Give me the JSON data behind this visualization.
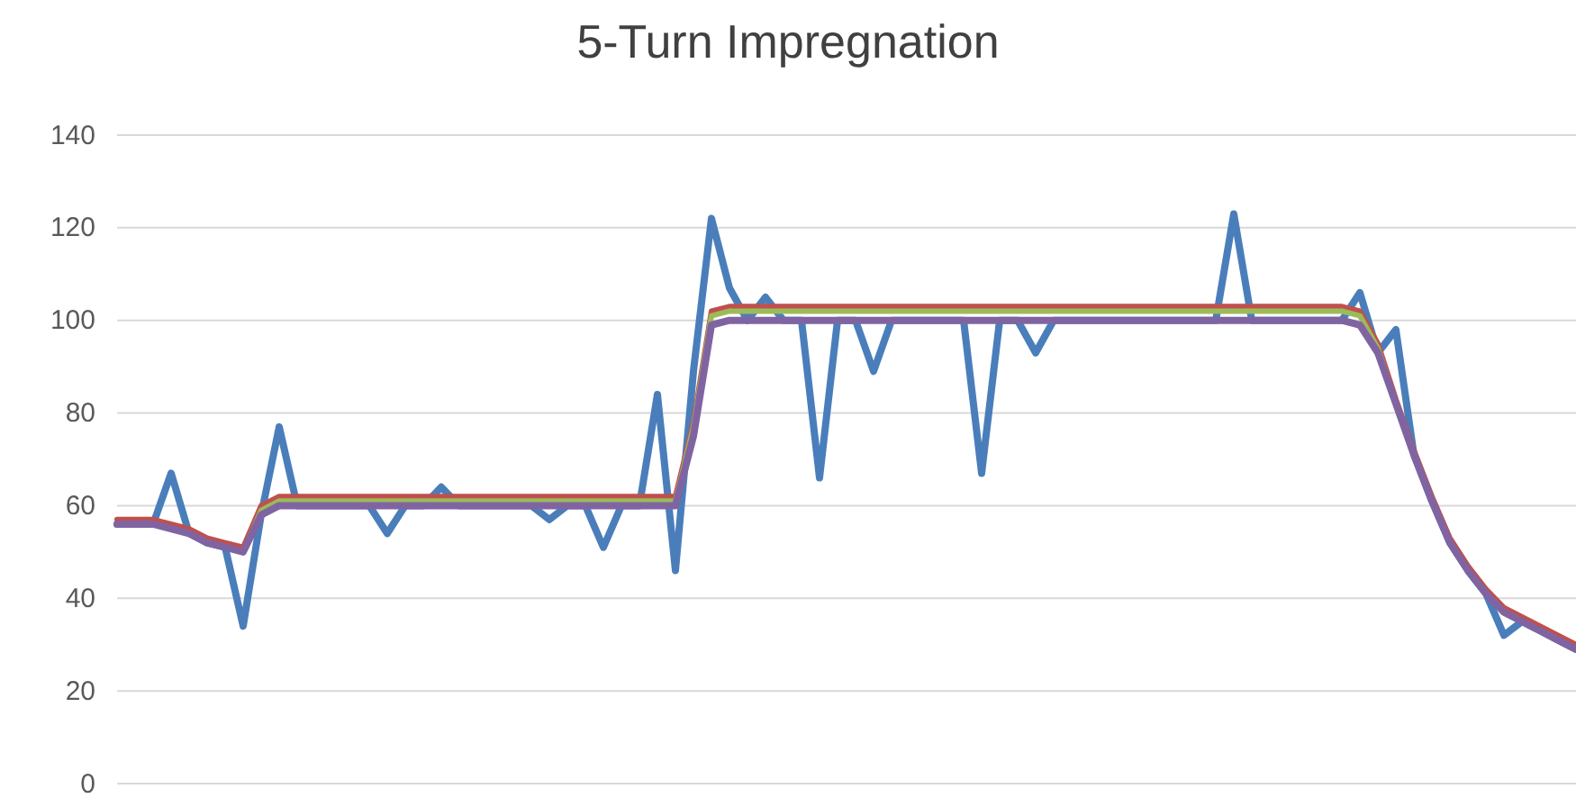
{
  "chart_data": {
    "type": "line",
    "title": "5-Turn Impregnation",
    "categories": [
      null,
      null,
      null,
      null,
      null,
      null,
      null,
      null,
      null,
      null,
      null,
      null,
      null,
      null,
      null,
      null,
      null,
      null,
      null,
      null,
      null,
      null,
      null,
      null,
      null,
      null,
      null,
      null,
      null,
      null,
      null,
      null,
      null,
      null,
      null,
      null,
      null,
      null,
      null,
      null,
      null,
      null,
      null,
      null,
      null,
      null,
      null,
      null,
      null,
      null,
      null,
      null,
      null,
      null,
      null,
      null,
      null,
      null,
      null,
      null,
      null,
      null,
      null,
      null,
      null,
      null,
      null,
      null,
      null,
      null,
      null,
      null,
      null,
      null,
      null,
      null,
      null,
      null,
      null,
      null,
      null,
      null
    ],
    "ylim": [
      0,
      140
    ],
    "yticks": [
      0,
      20,
      40,
      60,
      80,
      100,
      120,
      140
    ],
    "grid": "y",
    "tick_labels": "y",
    "line_style": "solid",
    "marker": "none",
    "series": [
      {
        "color": "#4a7ebb",
        "values": [
          56,
          56,
          56,
          67,
          54,
          52,
          51,
          34,
          58,
          77,
          60,
          60,
          60,
          60,
          60,
          54,
          60,
          60,
          64,
          60,
          60,
          60,
          60,
          60,
          57,
          60,
          60,
          51,
          60,
          60,
          84,
          46,
          89,
          122,
          107,
          100,
          105,
          100,
          100,
          66,
          100,
          100,
          89,
          100,
          100,
          100,
          100,
          100,
          67,
          100,
          100,
          93,
          100,
          100,
          100,
          100,
          100,
          100,
          100,
          100,
          100,
          100,
          123,
          100,
          100,
          100,
          100,
          100,
          100,
          106,
          93,
          98,
          71,
          61,
          52,
          46,
          41,
          32,
          35,
          33,
          31,
          29
        ]
      },
      {
        "color": "#c0504d",
        "values": [
          57,
          57,
          57,
          56,
          55,
          53,
          52,
          51,
          60,
          62,
          62,
          62,
          62,
          62,
          62,
          62,
          62,
          62,
          62,
          62,
          62,
          62,
          62,
          62,
          62,
          62,
          62,
          62,
          62,
          62,
          62,
          62,
          78,
          102,
          103,
          103,
          103,
          103,
          103,
          103,
          103,
          103,
          103,
          103,
          103,
          103,
          103,
          103,
          103,
          103,
          103,
          103,
          103,
          103,
          103,
          103,
          103,
          103,
          103,
          103,
          103,
          103,
          103,
          103,
          103,
          103,
          103,
          103,
          103,
          102,
          95,
          83,
          72,
          62,
          53,
          47,
          42,
          38,
          36,
          34,
          32,
          30
        ]
      },
      {
        "color": "#9bbb59",
        "values": [
          null,
          null,
          null,
          null,
          null,
          null,
          null,
          50,
          59,
          61,
          61,
          61,
          61,
          61,
          61,
          61,
          61,
          61,
          61,
          61,
          61,
          61,
          61,
          61,
          61,
          61,
          61,
          61,
          61,
          61,
          61,
          61,
          77,
          101,
          102,
          102,
          102,
          102,
          102,
          102,
          102,
          102,
          102,
          102,
          102,
          102,
          102,
          102,
          102,
          102,
          102,
          102,
          102,
          102,
          102,
          102,
          102,
          102,
          102,
          102,
          102,
          102,
          102,
          102,
          102,
          102,
          102,
          102,
          102,
          101,
          94,
          82,
          null,
          null,
          null,
          null,
          null,
          null,
          null,
          null,
          null,
          null
        ]
      },
      {
        "color": "#8064a2",
        "values": [
          56,
          56,
          56,
          55,
          54,
          52,
          51,
          50,
          58,
          60,
          60,
          60,
          60,
          60,
          60,
          60,
          60,
          60,
          60,
          60,
          60,
          60,
          60,
          60,
          60,
          60,
          60,
          60,
          60,
          60,
          60,
          60,
          75,
          99,
          100,
          100,
          100,
          100,
          100,
          100,
          100,
          100,
          100,
          100,
          100,
          100,
          100,
          100,
          100,
          100,
          100,
          100,
          100,
          100,
          100,
          100,
          100,
          100,
          100,
          100,
          100,
          100,
          100,
          100,
          100,
          100,
          100,
          100,
          100,
          99,
          93,
          82,
          71,
          61,
          52,
          46,
          41,
          37,
          35,
          33,
          31,
          29
        ]
      }
    ]
  }
}
